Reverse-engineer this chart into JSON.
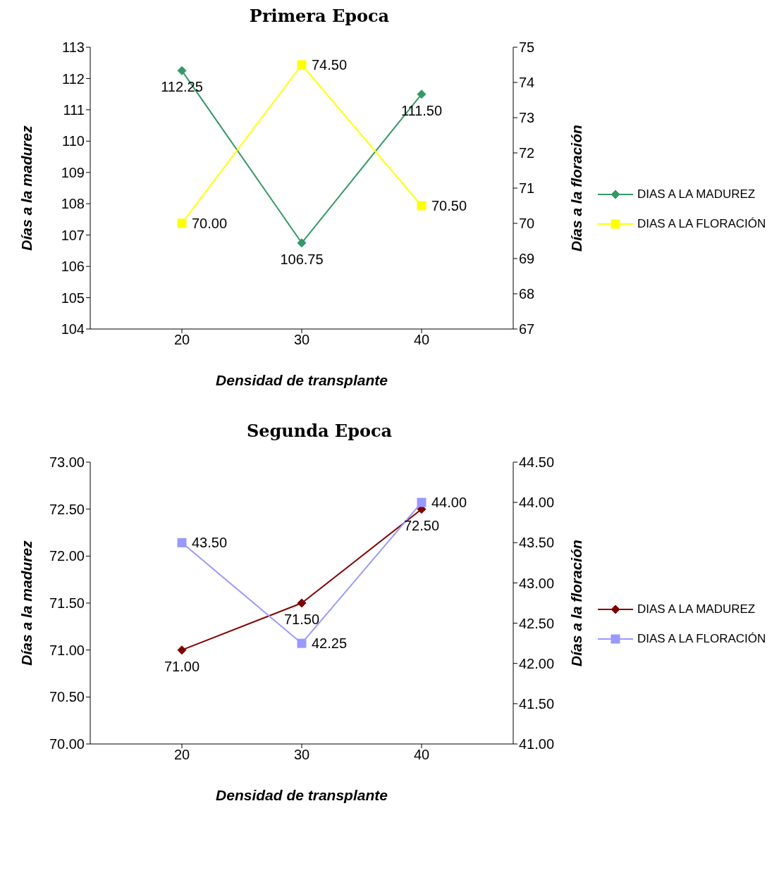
{
  "chart_data": [
    {
      "type": "line",
      "title": "Primera Epoca",
      "xlabel": "Densidad de transplante",
      "ylabel": "Días a la madurez",
      "y2label": "Días a la floración",
      "categories": [
        "20",
        "30",
        "40"
      ],
      "series": [
        {
          "name": "DIAS A LA MADUREZ",
          "color": "#339966",
          "marker": "diamond",
          "values": [
            112.25,
            106.75,
            111.5
          ],
          "value_labels": [
            "112.25",
            "106.75",
            "111.50"
          ]
        },
        {
          "name": "DIAS A LA FLORACIÓN",
          "color": "#ffff00",
          "marker": "square",
          "axis": "y2",
          "values": [
            70,
            74.5,
            70.5
          ],
          "value_labels": [
            "70.00",
            "74.50",
            "70.50"
          ]
        }
      ],
      "ylim": [
        104,
        113
      ],
      "yticks": [
        104,
        105,
        106,
        107,
        108,
        109,
        110,
        111,
        112,
        113
      ],
      "y2lim": [
        67,
        75
      ],
      "y2ticks": [
        67,
        68,
        69,
        70,
        71,
        72,
        73,
        74,
        75
      ],
      "grid": false,
      "legend": "right"
    },
    {
      "type": "line",
      "title": "Segunda Epoca",
      "xlabel": "Densidad de transplante",
      "ylabel": "Días a la madurez",
      "y2label": "Días a la floración",
      "categories": [
        "20",
        "30",
        "40"
      ],
      "series": [
        {
          "name": "DIAS A LA MADUREZ",
          "color": "#800000",
          "marker": "diamond",
          "values": [
            71,
            71.5,
            72.5
          ],
          "value_labels": [
            "71.00",
            "71.50",
            "72.50"
          ]
        },
        {
          "name": "DIAS A LA FLORACIÓN",
          "color": "#9999ff",
          "marker": "square",
          "axis": "y2",
          "values": [
            43.5,
            42.25,
            44
          ],
          "value_labels": [
            "43.50",
            "42.25",
            "44.00"
          ]
        }
      ],
      "ylim": [
        70,
        73
      ],
      "yticks": [
        {
          "value": 70,
          "label": "70.00"
        },
        {
          "value": 70.5,
          "label": "70.50"
        },
        {
          "value": 71,
          "label": "71.00"
        },
        {
          "value": 71.5,
          "label": "71.50"
        },
        {
          "value": 72,
          "label": "72.00"
        },
        {
          "value": 72.5,
          "label": "72.50"
        },
        {
          "value": 73,
          "label": "73.00"
        }
      ],
      "y2lim": [
        41,
        44.5
      ],
      "y2ticks": [
        {
          "value": 41,
          "label": "41.00"
        },
        {
          "value": 41.5,
          "label": "41.50"
        },
        {
          "value": 42,
          "label": "42.00"
        },
        {
          "value": 42.5,
          "label": "42.50"
        },
        {
          "value": 43,
          "label": "43.00"
        },
        {
          "value": 43.5,
          "label": "43.50"
        },
        {
          "value": 44,
          "label": "44.00"
        },
        {
          "value": 44.5,
          "label": "44.50"
        }
      ],
      "grid": false,
      "legend": "right"
    }
  ]
}
